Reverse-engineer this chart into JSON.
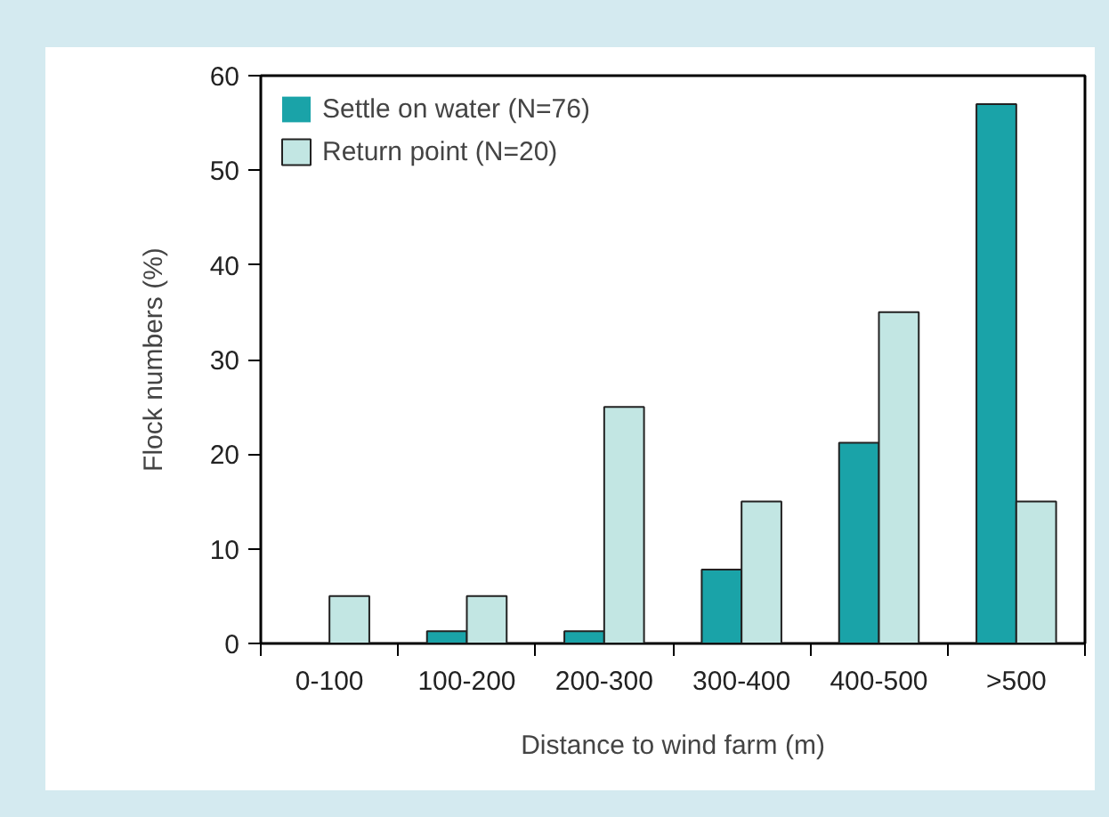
{
  "chart_data": {
    "type": "bar",
    "xlabel": "Distance to wind farm (m)",
    "ylabel": "Flock numbers (%)",
    "categories": [
      "0-100",
      "100-200",
      "200-300",
      "300-400",
      "400-500",
      ">500"
    ],
    "series": [
      {
        "name": "Settle on water (N=76)",
        "color": "#1aa3a8",
        "values": [
          0,
          1.3,
          1.3,
          7.8,
          21.2,
          57
        ]
      },
      {
        "name": "Return point (N=20)",
        "color": "#c2e6e3",
        "values": [
          5,
          5,
          25,
          15,
          35,
          15
        ]
      }
    ],
    "ylim": [
      0,
      60
    ],
    "yticks": [
      0,
      10,
      20,
      30,
      40,
      50,
      60
    ],
    "grid": false,
    "legend": "top left"
  }
}
